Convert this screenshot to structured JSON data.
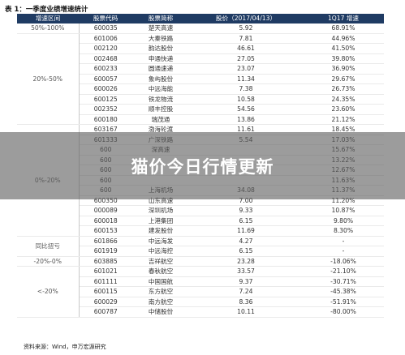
{
  "title": "表 1：一季度业绩增速统计",
  "headers": [
    "增速区间",
    "股票代码",
    "股票简称",
    "股价（2017/04/13）",
    "1Q17 增速"
  ],
  "groups": [
    {
      "range": "50%-100%",
      "rows": [
        [
          "600035",
          "楚天高速",
          "5.92",
          "68.91%"
        ]
      ]
    },
    {
      "range": "20%-50%",
      "rows": [
        [
          "601006",
          "大秦铁路",
          "7.81",
          "44.96%"
        ],
        [
          "002120",
          "韵达股份",
          "46.61",
          "41.50%"
        ],
        [
          "002468",
          "申通快递",
          "27.05",
          "39.80%"
        ],
        [
          "600233",
          "圆通速递",
          "23.07",
          "36.90%"
        ],
        [
          "600057",
          "象屿股份",
          "11.34",
          "29.67%"
        ],
        [
          "600026",
          "中远海能",
          "7.38",
          "26.73%"
        ],
        [
          "600125",
          "铁龙物流",
          "10.58",
          "24.35%"
        ],
        [
          "002352",
          "顺丰控股",
          "54.56",
          "23.60%"
        ],
        [
          "600180",
          "瑞茂通",
          "13.86",
          "21.12%"
        ]
      ]
    },
    {
      "range": "0%-20%",
      "rows": [
        [
          "603167",
          "渤海轮渡",
          "11.61",
          "18.45%"
        ],
        [
          "601333",
          "广深铁路",
          "5.54",
          "17.03%"
        ],
        [
          "600",
          "深高速",
          "",
          "15.67%"
        ],
        [
          "600",
          "",
          "",
          "13.22%"
        ],
        [
          "600",
          "",
          "",
          "12.67%"
        ],
        [
          "600",
          "",
          "",
          "11.63%"
        ],
        [
          "600",
          "上海机场",
          "34.08",
          "11.37%"
        ],
        [
          "600350",
          "山东高速",
          "7.00",
          "11.20%"
        ],
        [
          "000089",
          "深圳机场",
          "9.33",
          "10.87%"
        ],
        [
          "600018",
          "上港集团",
          "6.15",
          "9.80%"
        ],
        [
          "600153",
          "建发股份",
          "11.69",
          "8.30%"
        ]
      ]
    },
    {
      "range": "同比扭亏",
      "rows": [
        [
          "601866",
          "中远海发",
          "4.27",
          "-"
        ],
        [
          "601919",
          "中远海控",
          "6.15",
          "-"
        ]
      ]
    },
    {
      "range": "-20%-0%",
      "rows": [
        [
          "603885",
          "吉祥航空",
          "23.28",
          "-18.06%"
        ]
      ]
    },
    {
      "range": "<-20%",
      "rows": [
        [
          "601021",
          "春秋航空",
          "33.57",
          "-21.10%"
        ],
        [
          "601111",
          "中国国航",
          "9.37",
          "-30.71%"
        ],
        [
          "600115",
          "东方航空",
          "7.24",
          "-45.38%"
        ],
        [
          "600029",
          "南方航空",
          "8.36",
          "-51.91%"
        ],
        [
          "600787",
          "中储股份",
          "10.11",
          "-80.00%"
        ]
      ]
    }
  ],
  "source": "资料来源：Wind，申万宏源研究",
  "overlay_text": "猫价今日行情更新"
}
